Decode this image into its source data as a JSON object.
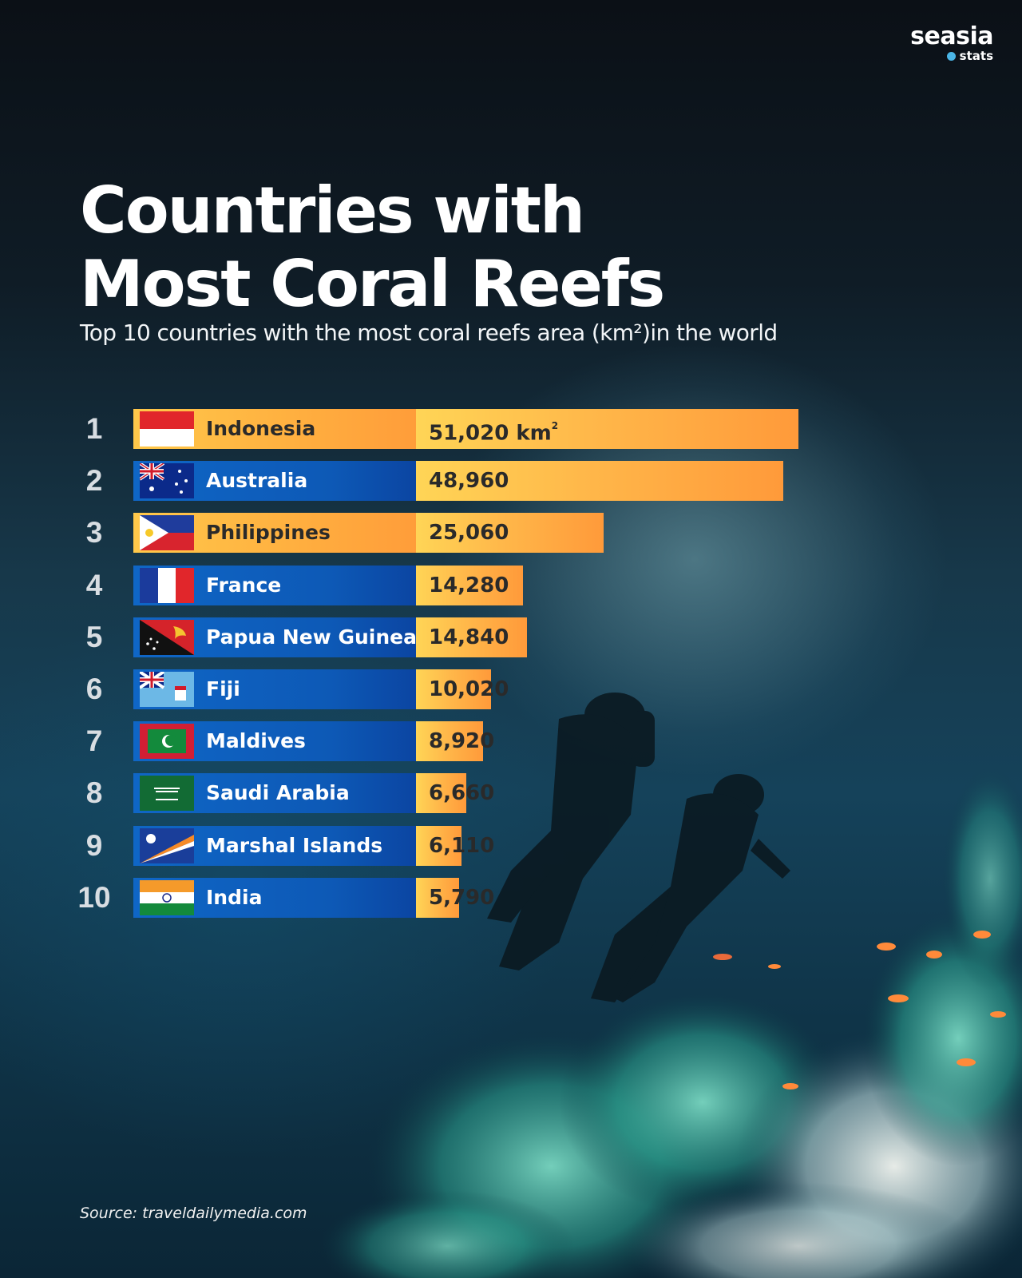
{
  "brand": {
    "name": "seasia",
    "sub": "stats"
  },
  "title_line1": "Countries with",
  "title_line2": "Most Coral Reefs",
  "subtitle": "Top 10 countries with the most coral reefs area (km²)in the world",
  "source": "Source: traveldailymedia.com",
  "unit_first": "km",
  "unit_sup": "2",
  "colors": {
    "orange_start": "#ffd556",
    "orange_end": "#ff9a3a",
    "blue": "#0d59b6"
  },
  "chart_data": {
    "type": "bar",
    "orientation": "horizontal",
    "title": "Countries with Most Coral Reefs",
    "subtitle": "Top 10 countries with the most coral reefs area (km²)in the world",
    "ranks": [
      "1",
      "2",
      "3",
      "4",
      "5",
      "6",
      "7",
      "8",
      "9",
      "10"
    ],
    "categories": [
      "Indonesia",
      "Australia",
      "Philippines",
      "France",
      "Papua New Guinea",
      "Fiji",
      "Maldives",
      "Saudi Arabia",
      "Marshal Islands",
      "India"
    ],
    "values": [
      51020,
      48960,
      25060,
      14280,
      14840,
      10020,
      8920,
      6660,
      6110,
      5790
    ],
    "value_labels": [
      "51,020",
      "48,960",
      "25,060",
      "14,280",
      "14,840",
      "10,020",
      "8,920",
      "6,660",
      "6,110",
      "5,790"
    ],
    "row_styles": [
      "orange",
      "blue",
      "orange",
      "blue",
      "blue",
      "blue",
      "blue",
      "blue",
      "blue",
      "blue"
    ],
    "flags": [
      "indonesia-flag",
      "australia-flag",
      "philippines-flag",
      "france-flag",
      "papua-new-guinea-flag",
      "fiji-flag",
      "maldives-flag",
      "saudi-arabia-flag",
      "marshall-islands-flag",
      "india-flag"
    ]
  }
}
